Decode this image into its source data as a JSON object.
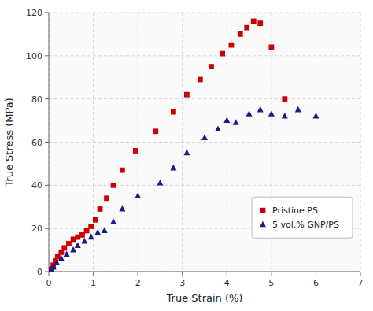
{
  "chart_data": {
    "type": "scatter",
    "xlabel": "True Strain (%)",
    "ylabel": "True Stress (MPa)",
    "xlim": [
      0,
      7
    ],
    "ylim": [
      0,
      120
    ],
    "xticks": [
      0,
      1,
      2,
      3,
      4,
      5,
      6,
      7
    ],
    "yticks": [
      0,
      20,
      40,
      60,
      80,
      100,
      120
    ],
    "grid": true,
    "legend": "lower right",
    "series": [
      {
        "name": "Pristine PS",
        "color": "#cc0000",
        "marker": "square",
        "x": [
          0.05,
          0.1,
          0.15,
          0.2,
          0.28,
          0.35,
          0.45,
          0.55,
          0.65,
          0.75,
          0.85,
          0.95,
          1.05,
          1.15,
          1.3,
          1.45,
          1.65,
          1.95,
          2.4,
          2.8,
          3.1,
          3.4,
          3.65,
          3.9,
          4.1,
          4.3,
          4.45,
          4.6,
          4.75,
          5.0,
          5.3
        ],
        "values": [
          1,
          3,
          5,
          7,
          9,
          11,
          13,
          15,
          16,
          17,
          19,
          21,
          24,
          29,
          34,
          40,
          47,
          56,
          65,
          74,
          82,
          89,
          95,
          101,
          105,
          110,
          113,
          116,
          115,
          104,
          80
        ]
      },
      {
        "name": "5 vol.% GNP/PS",
        "color": "#1a1a8c",
        "marker": "triangle",
        "x": [
          0.05,
          0.1,
          0.18,
          0.28,
          0.4,
          0.55,
          0.65,
          0.8,
          0.95,
          1.1,
          1.25,
          1.45,
          1.65,
          2.0,
          2.5,
          2.8,
          3.1,
          3.5,
          3.8,
          4.0,
          4.2,
          4.5,
          4.75,
          5.0,
          5.3,
          5.6,
          6.0
        ],
        "values": [
          1,
          2,
          4,
          6,
          8,
          10,
          12,
          14,
          16,
          18,
          19,
          23,
          29,
          35,
          41,
          48,
          55,
          62,
          66,
          70,
          69,
          73,
          75,
          73,
          72,
          75,
          72
        ]
      }
    ]
  }
}
